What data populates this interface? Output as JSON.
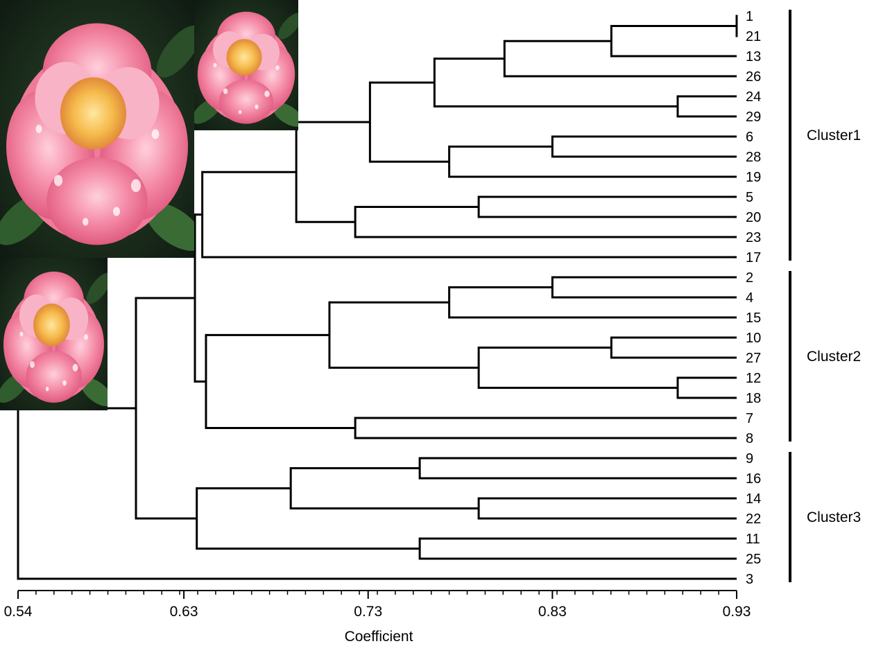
{
  "chart_data": {
    "type": "dendrogram",
    "xlabel": "Coefficient",
    "xlim": [
      0.54,
      0.93
    ],
    "x_ticks": [
      "0.54",
      "0.63",
      "0.73",
      "0.83",
      "0.93"
    ],
    "leaves": [
      "1",
      "21",
      "13",
      "26",
      "24",
      "29",
      "6",
      "28",
      "19",
      "5",
      "20",
      "23",
      "17",
      "2",
      "4",
      "15",
      "10",
      "27",
      "12",
      "18",
      "7",
      "8",
      "9",
      "16",
      "14",
      "22",
      "11",
      "25",
      "3"
    ],
    "merges": [
      {
        "a": "1",
        "b": "21",
        "h": 0.93,
        "id": "m1"
      },
      {
        "a": "m1",
        "b": "13",
        "h": 0.862,
        "id": "m2"
      },
      {
        "a": "m2",
        "b": "26",
        "h": 0.804,
        "id": "m3"
      },
      {
        "a": "24",
        "b": "29",
        "h": 0.898,
        "id": "m4"
      },
      {
        "a": "m3",
        "b": "m4",
        "h": 0.766,
        "id": "m5"
      },
      {
        "a": "6",
        "b": "28",
        "h": 0.83,
        "id": "m6"
      },
      {
        "a": "m6",
        "b": "19",
        "h": 0.774,
        "id": "m7"
      },
      {
        "a": "m5",
        "b": "m7",
        "h": 0.731,
        "id": "m8"
      },
      {
        "a": "5",
        "b": "20",
        "h": 0.79,
        "id": "m9"
      },
      {
        "a": "m9",
        "b": "23",
        "h": 0.723,
        "id": "m10"
      },
      {
        "a": "m8",
        "b": "m10",
        "h": 0.691,
        "id": "m11"
      },
      {
        "a": "m11",
        "b": "17",
        "h": 0.64,
        "id": "m12"
      },
      {
        "a": "2",
        "b": "4",
        "h": 0.83,
        "id": "m13"
      },
      {
        "a": "m13",
        "b": "15",
        "h": 0.774,
        "id": "m14"
      },
      {
        "a": "10",
        "b": "27",
        "h": 0.862,
        "id": "m15"
      },
      {
        "a": "12",
        "b": "18",
        "h": 0.898,
        "id": "m16"
      },
      {
        "a": "m15",
        "b": "m16",
        "h": 0.79,
        "id": "m17"
      },
      {
        "a": "m14",
        "b": "m17",
        "h": 0.709,
        "id": "m18"
      },
      {
        "a": "7",
        "b": "8",
        "h": 0.723,
        "id": "m19"
      },
      {
        "a": "m18",
        "b": "m19",
        "h": 0.642,
        "id": "m20"
      },
      {
        "a": "m12",
        "b": "m20",
        "h": 0.636,
        "id": "m21"
      },
      {
        "a": "9",
        "b": "16",
        "h": 0.758,
        "id": "m22"
      },
      {
        "a": "14",
        "b": "22",
        "h": 0.79,
        "id": "m23"
      },
      {
        "a": "m22",
        "b": "m23",
        "h": 0.688,
        "id": "m24"
      },
      {
        "a": "11",
        "b": "25",
        "h": 0.758,
        "id": "m25"
      },
      {
        "a": "m24",
        "b": "m25",
        "h": 0.637,
        "id": "m26"
      },
      {
        "a": "m21",
        "b": "m26",
        "h": 0.604,
        "id": "m27"
      },
      {
        "a": "m27",
        "b": "3",
        "h": 0.54,
        "id": "m28"
      }
    ],
    "clusters": [
      {
        "label": "Cluster1",
        "first": "1",
        "last": "17"
      },
      {
        "label": "Cluster2",
        "first": "2",
        "last": "8"
      },
      {
        "label": "Cluster3",
        "first": "9",
        "last": "3"
      }
    ]
  },
  "images": [
    {
      "name": "peony-flower-image-large",
      "subject": "pink peony with water droplets"
    },
    {
      "name": "peony-flower-image-top",
      "subject": "pink peony with water droplets"
    },
    {
      "name": "peony-flower-image-left",
      "subject": "pink peony with water droplets"
    }
  ]
}
